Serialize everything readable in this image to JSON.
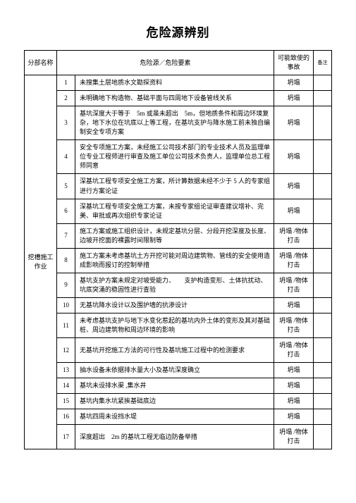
{
  "title": "危险源辨别",
  "headers": {
    "section": "分部名称",
    "hazard": "危险源／危险要素",
    "effect": "可能致使的事故",
    "remark": "备注"
  },
  "section_label": "挖槽施工作业",
  "rows": [
    {
      "num": "1",
      "hazard": "未搜集土层地质水文勘探资料",
      "effect": "坍塌",
      "remark": ""
    },
    {
      "num": "2",
      "hazard": "未明确地下构造物、基础平面与四周地下设备管线关系",
      "effect": "坍塌",
      "remark": ""
    },
    {
      "num": "3",
      "hazard": "基坑深度大于等于　5m 或虽未超出　5m，但地质条件和周边环境复杂，地下水位在坑底以上等工程，在基坑支护与降水施工前未独自编制安全专项方案",
      "effect": "坍塌",
      "remark": ""
    },
    {
      "num": "4",
      "hazard": "安全专项施工方案，未经施工公司技术部门的专业技术人员及监理单位专业工程师进行审查及施工单位公司技术负责人，监理单位总工程师同意",
      "effect": "坍塌",
      "remark": ""
    },
    {
      "num": "5",
      "hazard": "深基坑工程专项安全施工方案，所计算数据未经不少于 5 人的专家组进行方案论证",
      "effect": "坍塌",
      "remark": ""
    },
    {
      "num": "6",
      "hazard": "深基坑工程专项安全施工方案，未按专家组论证审查建议增补、完美、审批或再次组织专家论证",
      "effect": "坍塌",
      "remark": ""
    },
    {
      "num": "7",
      "hazard": "施工方案或施工组织设计，未规定基坑分层、分段开挖深度及长度、边坡开挖面的裸露时间限制等",
      "effect": "坍塌 /物体打击",
      "remark": ""
    },
    {
      "num": "8",
      "hazard": "施工方案未考虑基坑土方开挖可能对周边建筑物、管线的安全使用造成影响而报订的控制举措",
      "effect": "坍塌 /物体打击",
      "remark": ""
    },
    {
      "num": "9",
      "hazard": "基坑支护方案未规定对坡受能力、　　支护构造变形、土体抗扰动、坑底突涌的稳固性进行查验",
      "effect": "坍塌 /物体打击",
      "remark": ""
    },
    {
      "num": "10",
      "hazard": "无基坑降水设计以及围护墙的抗渗设计",
      "effect": "坍塌",
      "remark": ""
    },
    {
      "num": "11",
      "hazard": "未考虑基坑支护与地下水变化惹起的基坑内外土体的变形及其对基础桩、周边建筑物和周边环境的影响",
      "effect": "坍塌 /物体打击",
      "remark": ""
    },
    {
      "num": "12",
      "hazard": "无基坑开挖施工方法的可行性及基坑施工过程中的检测要求",
      "effect": "坍塌 /物体打击",
      "remark": ""
    },
    {
      "num": "13",
      "hazard": "抽水设备未依据排水量大小及基坑深度确立",
      "effect": "坍塌",
      "remark": ""
    },
    {
      "num": "14",
      "hazard": "基坑未设排水渠 ,集水井",
      "effect": "坍塌",
      "remark": ""
    },
    {
      "num": "15",
      "hazard": "基坑内集水坑紧挨基础底边",
      "effect": "坍塌",
      "remark": ""
    },
    {
      "num": "16",
      "hazard": "基坑四周未设挡水堤",
      "effect": "坍塌",
      "remark": ""
    },
    {
      "num": "17",
      "hazard": "深度超出　2m 的基坑工程无临边防备举措",
      "effect": "坍塌 /物体打击",
      "remark": ""
    }
  ]
}
